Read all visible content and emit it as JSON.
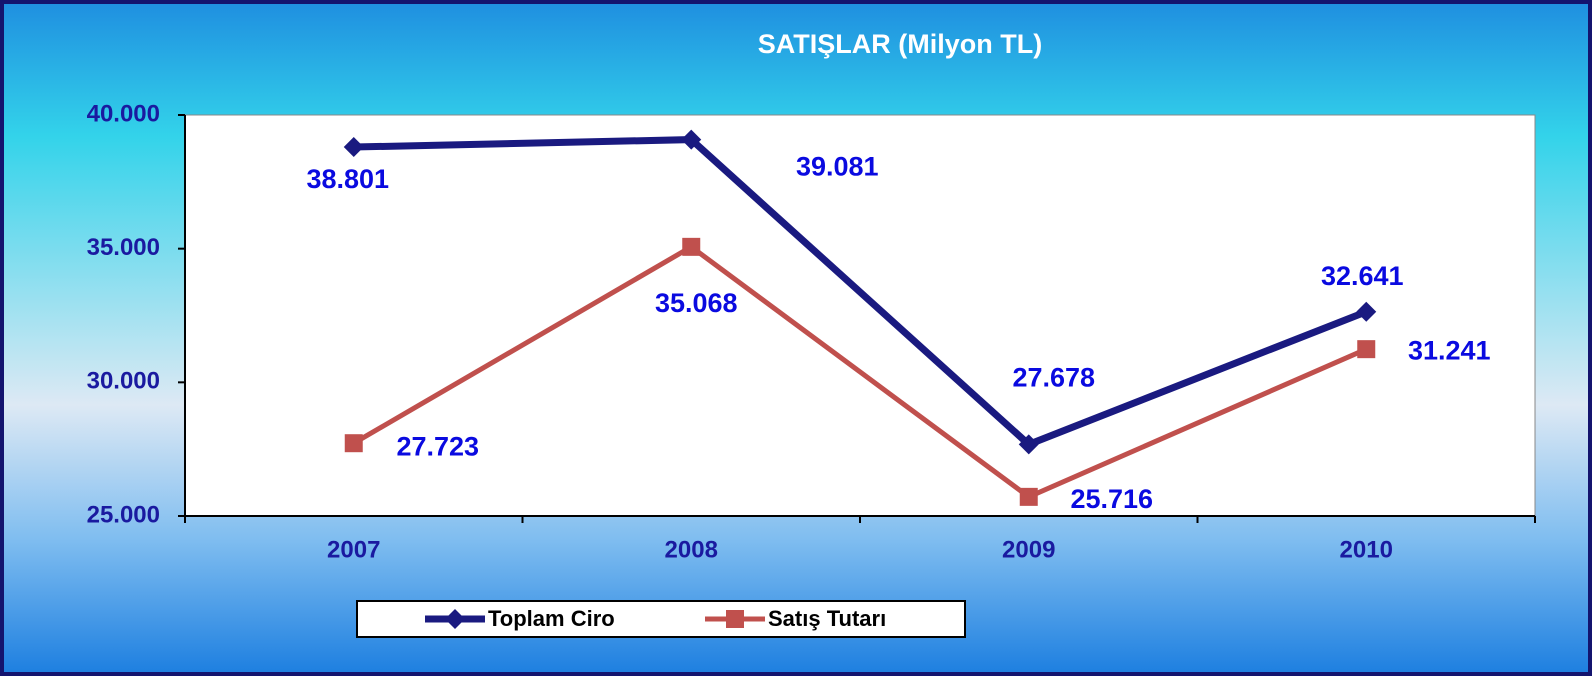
{
  "chart_data": {
    "type": "line",
    "title": "SATIŞLAR (Milyon TL)",
    "categories": [
      "2007",
      "2008",
      "2009",
      "2010"
    ],
    "series": [
      {
        "name": "Toplam Ciro",
        "color": "#1a1a80",
        "marker": "diamond",
        "values": [
          38801,
          39081,
          27678,
          32641
        ],
        "value_labels": [
          "38.801",
          "39.081",
          "27.678",
          "32.641"
        ]
      },
      {
        "name": "Satış Tutarı",
        "color": "#c0504d",
        "marker": "square",
        "values": [
          27723,
          35068,
          25716,
          31241
        ],
        "value_labels": [
          "27.723",
          "35.068",
          "25.716",
          "31.241"
        ]
      }
    ],
    "ylim": [
      25000,
      40000
    ],
    "yticks": [
      {
        "value": 25000,
        "label": "25.000"
      },
      {
        "value": 30000,
        "label": "30.000"
      },
      {
        "value": 35000,
        "label": "35.000"
      },
      {
        "value": 40000,
        "label": "40.000"
      }
    ],
    "legend": "bottom"
  }
}
